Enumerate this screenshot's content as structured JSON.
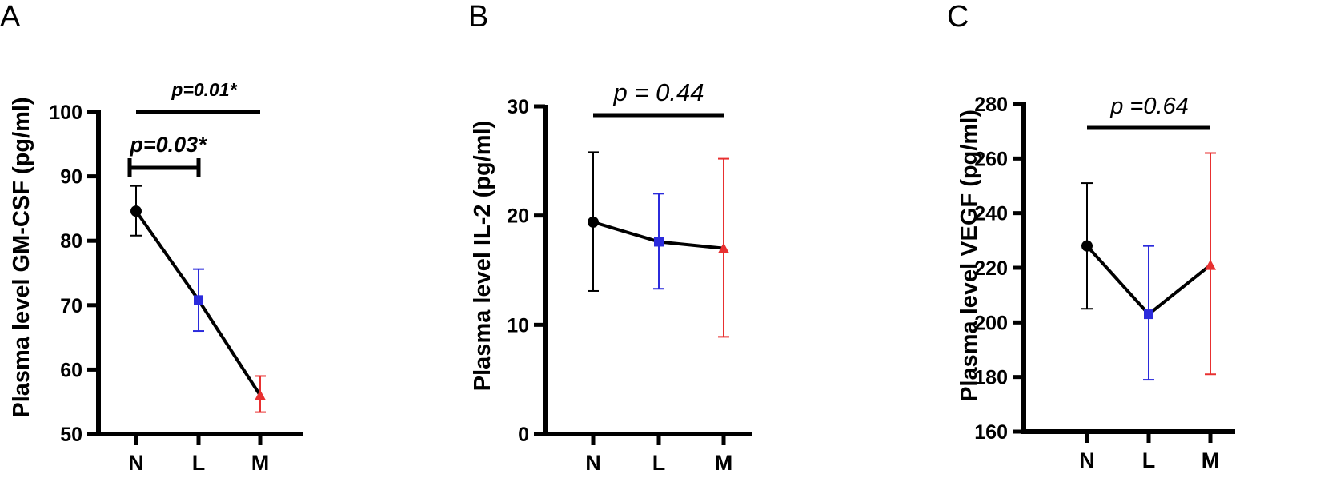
{
  "colors": {
    "N": "#000000",
    "L": "#2b2bdc",
    "M": "#e83030",
    "line": "#000000"
  },
  "chart_data": [
    {
      "type": "line",
      "panel": "A",
      "ylabel": "Plasma level GM-CSF (pg/ml)",
      "categories": [
        "N",
        "L",
        "M"
      ],
      "ylim": [
        50,
        100
      ],
      "yticks": [
        50,
        60,
        70,
        80,
        90,
        100
      ],
      "series": [
        {
          "values": [
            84.6,
            70.8,
            56.0
          ],
          "err_low": [
            80.8,
            66.0,
            53.4
          ],
          "err_high": [
            88.5,
            75.6,
            59.0
          ]
        }
      ],
      "annotations": [
        {
          "text": "p=0.03*",
          "from": "N",
          "to": "L",
          "style": "bracket"
        },
        {
          "text": "p=0.01*",
          "from": "N",
          "to": "M",
          "style": "bar"
        }
      ]
    },
    {
      "type": "line",
      "panel": "B",
      "ylabel": "Plasma level IL-2 (pg/ml)",
      "categories": [
        "N",
        "L",
        "M"
      ],
      "ylim": [
        0,
        30
      ],
      "yticks": [
        0,
        10,
        20,
        30
      ],
      "series": [
        {
          "values": [
            19.4,
            17.6,
            17.0
          ],
          "err_low": [
            13.1,
            13.3,
            8.9
          ],
          "err_high": [
            25.8,
            22.0,
            25.2
          ]
        }
      ],
      "annotations": [
        {
          "text": "p = 0.44",
          "from": "N",
          "to": "M",
          "style": "bar"
        }
      ]
    },
    {
      "type": "line",
      "panel": "C",
      "ylabel": "Plasma level VEGF (pg/ml)",
      "categories": [
        "N",
        "L",
        "M"
      ],
      "ylim": [
        160,
        280
      ],
      "yticks": [
        160,
        180,
        200,
        220,
        240,
        260,
        280
      ],
      "series": [
        {
          "values": [
            228,
            203,
            221
          ],
          "err_low": [
            205,
            179,
            181
          ],
          "err_high": [
            251,
            228,
            262
          ]
        }
      ],
      "annotations": [
        {
          "text": "p =0.64",
          "from": "N",
          "to": "M",
          "style": "bar"
        }
      ]
    }
  ]
}
